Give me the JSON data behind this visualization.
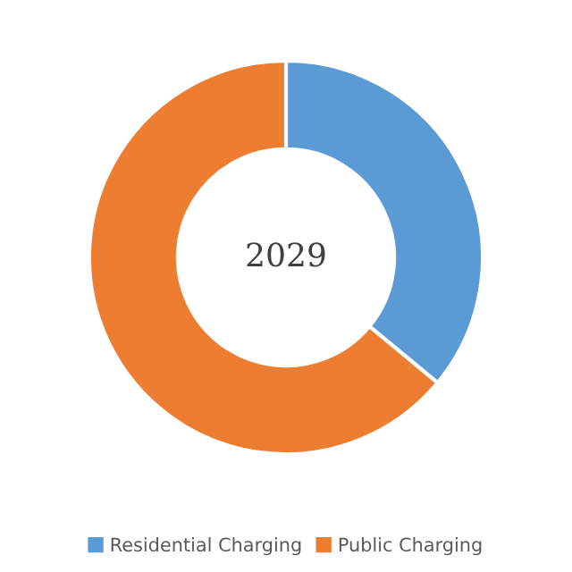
{
  "chart_data": {
    "type": "donut",
    "categories": [
      "Residential Charging",
      "Public Charging"
    ],
    "values": [
      36,
      64
    ],
    "colors": [
      "#5b9bd5",
      "#ed7d31"
    ],
    "annotations": [
      "2029"
    ],
    "legend": "bottom"
  }
}
